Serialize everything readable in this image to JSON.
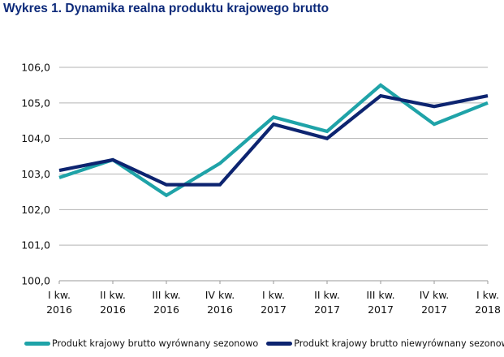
{
  "chart_data": {
    "type": "line",
    "title": "Wykres 1. Dynamika realna produktu krajowego brutto",
    "xlabel": "",
    "ylabel": "",
    "categories": [
      [
        "I kw.",
        "2016"
      ],
      [
        "II kw.",
        "2016"
      ],
      [
        "III kw.",
        "2016"
      ],
      [
        "IV kw.",
        "2016"
      ],
      [
        "I kw.",
        "2017"
      ],
      [
        "II kw.",
        "2017"
      ],
      [
        "III kw.",
        "2017"
      ],
      [
        "IV kw.",
        "2017"
      ],
      [
        "I kw.",
        "2018"
      ]
    ],
    "yticks": [
      "100,0",
      "101,0",
      "102,0",
      "103,0",
      "104,0",
      "105,0",
      "106,0"
    ],
    "ylim": [
      100,
      106
    ],
    "grid": true,
    "legend_position": "bottom",
    "series": [
      {
        "name": "Produkt krajowy brutto wyrównany sezonowo",
        "color": "#1fa3a8",
        "values": [
          102.9,
          103.4,
          102.4,
          103.3,
          104.6,
          104.2,
          105.5,
          104.4,
          105.0
        ]
      },
      {
        "name": "Produkt krajowy brutto niewyrównany sezonowo",
        "color": "#0d2470",
        "values": [
          103.1,
          103.4,
          102.7,
          102.7,
          104.4,
          104.0,
          105.2,
          104.9,
          105.2
        ]
      }
    ]
  }
}
